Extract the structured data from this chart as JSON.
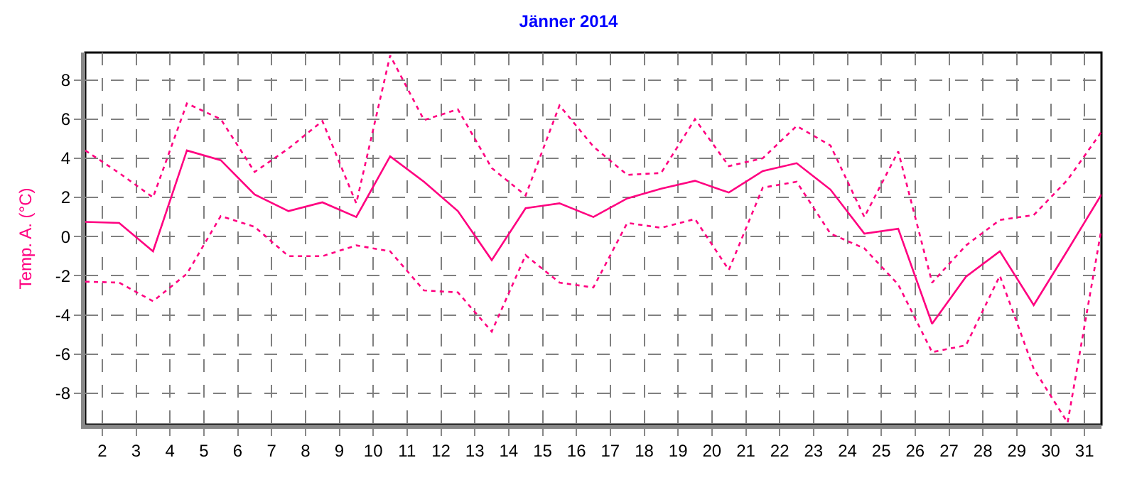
{
  "chart_data": {
    "type": "line",
    "title": "Jänner 2014",
    "ylabel": "Temp. A. (°C)",
    "x": [
      1.5,
      2.5,
      3.5,
      4.5,
      5.5,
      6.5,
      7.5,
      8.5,
      9.5,
      10.5,
      11.5,
      12.5,
      13.5,
      14.5,
      15.5,
      16.5,
      17.5,
      18.5,
      19.5,
      20.5,
      21.5,
      22.5,
      23.5,
      24.5,
      25.5,
      26.5,
      27.5,
      28.5,
      29.5,
      30.5,
      31.5
    ],
    "series": [
      {
        "color": "#ff0080",
        "line_style": "dotted",
        "values": [
          4.4,
          3.25,
          2.0,
          6.8,
          6.0,
          3.3,
          4.5,
          5.9,
          1.7,
          9.25,
          5.95,
          6.5,
          3.5,
          2.1,
          6.7,
          4.6,
          3.15,
          3.25,
          6.0,
          3.6,
          4.0,
          5.65,
          4.65,
          1.0,
          4.35,
          -2.35,
          -0.45,
          0.85,
          1.1,
          2.9,
          5.35
        ]
      },
      {
        "color": "#ff0080",
        "line_style": "solid",
        "values": [
          0.75,
          0.7,
          -0.75,
          4.4,
          3.9,
          2.15,
          1.3,
          1.75,
          1.0,
          4.1,
          2.8,
          1.3,
          -1.2,
          1.45,
          1.7,
          1.0,
          1.95,
          2.45,
          2.85,
          2.25,
          3.35,
          3.75,
          2.4,
          0.15,
          0.4,
          -4.45,
          -2.05,
          -0.75,
          -3.5,
          -0.7,
          2.15
        ]
      },
      {
        "color": "#ff0080",
        "line_style": "dotted",
        "values": [
          -2.3,
          -2.35,
          -3.3,
          -1.9,
          1.05,
          0.5,
          -1.0,
          -1.0,
          -0.45,
          -0.75,
          -2.75,
          -2.85,
          -4.85,
          -0.95,
          -2.35,
          -2.6,
          0.7,
          0.45,
          0.9,
          -1.7,
          2.5,
          2.8,
          0.15,
          -0.6,
          -2.45,
          -5.9,
          -5.55,
          -2.0,
          -6.75,
          -9.5,
          0.4
        ]
      }
    ],
    "xlim": [
      1.5,
      31.5
    ],
    "xticks": [
      2,
      3,
      4,
      5,
      6,
      7,
      8,
      9,
      10,
      11,
      12,
      13,
      14,
      15,
      16,
      17,
      18,
      19,
      20,
      21,
      22,
      23,
      24,
      25,
      26,
      27,
      28,
      29,
      30,
      31
    ],
    "ylim": [
      -9.6,
      9.4
    ],
    "yticks": [
      -8,
      -6,
      -4,
      -2,
      0,
      2,
      4,
      6,
      8
    ],
    "grid": true,
    "marker": "none"
  }
}
